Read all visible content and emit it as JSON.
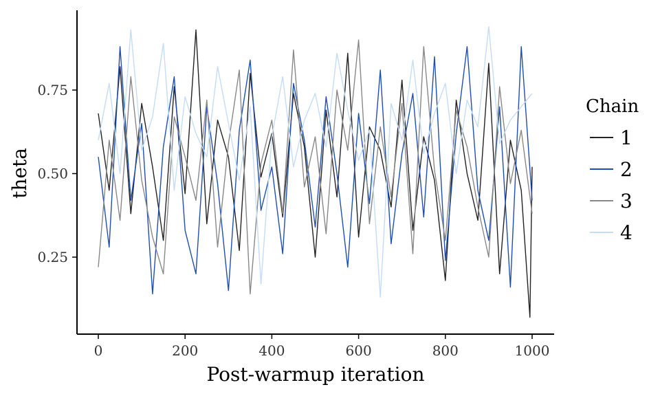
{
  "chart_data": {
    "type": "line",
    "xlabel": "Post-warmup iteration",
    "ylabel": "theta",
    "xlim": [
      0,
      1000
    ],
    "ylim": [
      0.05,
      0.95
    ],
    "x_ticks": [
      0,
      200,
      400,
      600,
      800,
      1000
    ],
    "x_tick_labels": [
      "0",
      "200",
      "400",
      "600",
      "800",
      "1000"
    ],
    "y_ticks": [
      0.25,
      0.5,
      0.75
    ],
    "y_tick_labels": [
      "0.25",
      "0.50",
      "0.75"
    ],
    "grid": false,
    "legend": {
      "title": "Chain",
      "position": "right",
      "entries": [
        "1",
        "2",
        "3",
        "4"
      ]
    },
    "series": [
      {
        "name": "1",
        "color": "#222222",
        "x": [
          0,
          25,
          50,
          75,
          100,
          125,
          150,
          175,
          200,
          225,
          250,
          275,
          300,
          325,
          350,
          375,
          400,
          425,
          450,
          475,
          500,
          525,
          550,
          575,
          600,
          625,
          650,
          675,
          700,
          725,
          750,
          775,
          800,
          825,
          850,
          875,
          900,
          925,
          950,
          975,
          995,
          1000
        ],
        "values": [
          0.68,
          0.45,
          0.82,
          0.38,
          0.71,
          0.52,
          0.3,
          0.76,
          0.44,
          0.93,
          0.35,
          0.66,
          0.55,
          0.27,
          0.8,
          0.49,
          0.62,
          0.37,
          0.74,
          0.58,
          0.25,
          0.69,
          0.43,
          0.86,
          0.31,
          0.64,
          0.57,
          0.4,
          0.78,
          0.33,
          0.61,
          0.48,
          0.18,
          0.72,
          0.5,
          0.36,
          0.83,
          0.2,
          0.6,
          0.45,
          0.07,
          0.52
        ]
      },
      {
        "name": "2",
        "color": "#1f4eb3",
        "x": [
          0,
          25,
          50,
          75,
          100,
          125,
          150,
          175,
          200,
          225,
          250,
          275,
          300,
          325,
          350,
          375,
          400,
          425,
          450,
          475,
          500,
          525,
          550,
          575,
          600,
          625,
          650,
          675,
          700,
          725,
          750,
          775,
          800,
          825,
          850,
          875,
          900,
          925,
          950,
          975,
          1000
        ],
        "values": [
          0.55,
          0.28,
          0.88,
          0.42,
          0.65,
          0.14,
          0.58,
          0.79,
          0.33,
          0.2,
          0.7,
          0.47,
          0.15,
          0.63,
          0.84,
          0.39,
          0.52,
          0.26,
          0.77,
          0.6,
          0.34,
          0.73,
          0.5,
          0.22,
          0.68,
          0.41,
          0.81,
          0.29,
          0.56,
          0.74,
          0.37,
          0.85,
          0.24,
          0.62,
          0.88,
          0.45,
          0.3,
          0.7,
          0.16,
          0.88,
          0.42
        ]
      },
      {
        "name": "3",
        "color": "#888888",
        "x": [
          0,
          25,
          50,
          75,
          100,
          125,
          150,
          175,
          200,
          225,
          250,
          275,
          300,
          325,
          350,
          375,
          400,
          425,
          450,
          475,
          500,
          525,
          550,
          575,
          600,
          625,
          650,
          675,
          700,
          725,
          750,
          775,
          800,
          825,
          850,
          875,
          900,
          925,
          950,
          975,
          1000
        ],
        "values": [
          0.22,
          0.6,
          0.36,
          0.79,
          0.48,
          0.31,
          0.2,
          0.67,
          0.55,
          0.42,
          0.72,
          0.28,
          0.59,
          0.81,
          0.14,
          0.53,
          0.66,
          0.38,
          0.87,
          0.46,
          0.61,
          0.32,
          0.75,
          0.57,
          0.9,
          0.35,
          0.64,
          0.43,
          0.71,
          0.26,
          0.88,
          0.51,
          0.3,
          0.69,
          0.58,
          0.4,
          0.25,
          0.76,
          0.47,
          0.63,
          0.38
        ]
      },
      {
        "name": "4",
        "color": "#c4dcf8",
        "x": [
          0,
          25,
          50,
          75,
          100,
          125,
          150,
          175,
          200,
          225,
          250,
          275,
          300,
          325,
          350,
          375,
          400,
          425,
          450,
          475,
          500,
          525,
          550,
          575,
          600,
          625,
          650,
          675,
          700,
          725,
          750,
          775,
          800,
          825,
          850,
          875,
          900,
          925,
          950,
          975,
          1000
        ],
        "values": [
          0.6,
          0.77,
          0.5,
          0.93,
          0.57,
          0.67,
          0.89,
          0.45,
          0.73,
          0.62,
          0.55,
          0.82,
          0.65,
          0.48,
          0.7,
          0.17,
          0.61,
          0.79,
          0.52,
          0.66,
          0.74,
          0.58,
          0.86,
          0.69,
          0.54,
          0.63,
          0.13,
          0.71,
          0.6,
          0.84,
          0.56,
          0.68,
          0.77,
          0.5,
          0.72,
          0.64,
          0.94,
          0.59,
          0.66,
          0.7,
          0.74
        ]
      }
    ]
  }
}
